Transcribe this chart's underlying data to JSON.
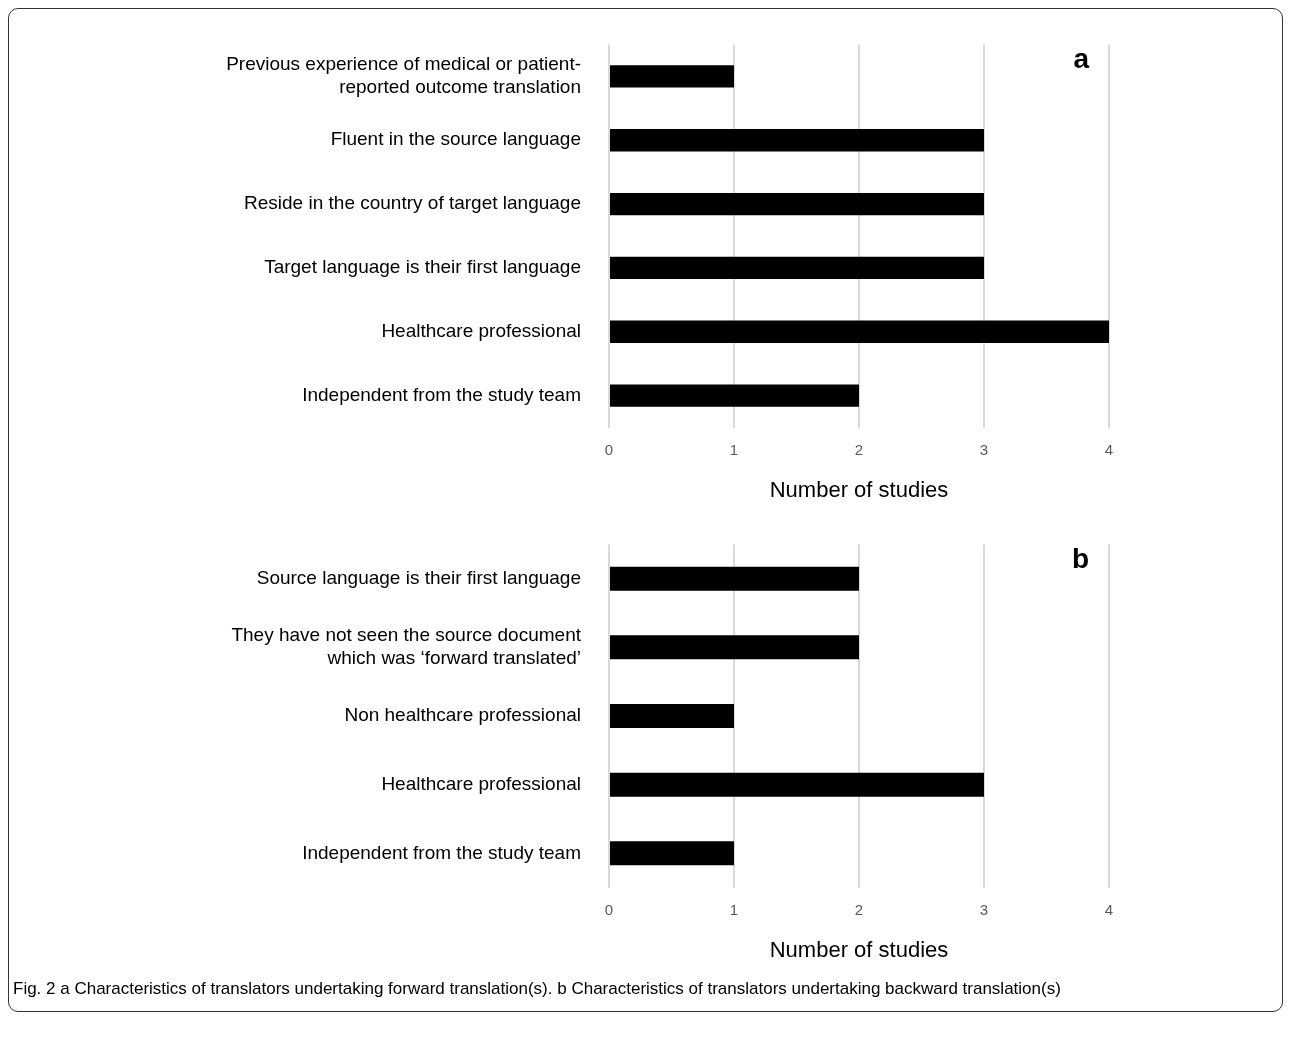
{
  "chart_data": [
    {
      "type": "bar",
      "orientation": "horizontal",
      "title": "a",
      "xlabel": "Number of studies",
      "categories": [
        "Previous experience of medical or patient-reported outcome translation",
        "Fluent in the source language",
        "Reside in the country of target language",
        "Target language is their first language",
        "Healthcare professional",
        "Independent from the study team"
      ],
      "values": [
        1,
        3,
        3,
        3,
        4,
        2
      ],
      "color": "#000000",
      "xlim": [
        0,
        4
      ],
      "xticks": [
        0,
        1,
        2,
        3,
        4
      ],
      "grid": "x",
      "legend": false
    },
    {
      "type": "bar",
      "orientation": "horizontal",
      "title": "b",
      "xlabel": "Number of studies",
      "categories": [
        "Source language is their first language",
        "They have not seen the source document which was ‘forward translated’",
        "Non healthcare professional",
        "Healthcare professional",
        "Independent from the study team"
      ],
      "values": [
        2,
        2,
        1,
        3,
        1
      ],
      "color": "#000000",
      "xlim": [
        0,
        4
      ],
      "xticks": [
        0,
        1,
        2,
        3,
        4
      ],
      "grid": "x",
      "legend": false,
      "annotations": [
        "Fig. 2 a Characteristics of translators undertaking forward translation(s). b Characteristics of translators undertaking backward translation(s)"
      ]
    }
  ]
}
